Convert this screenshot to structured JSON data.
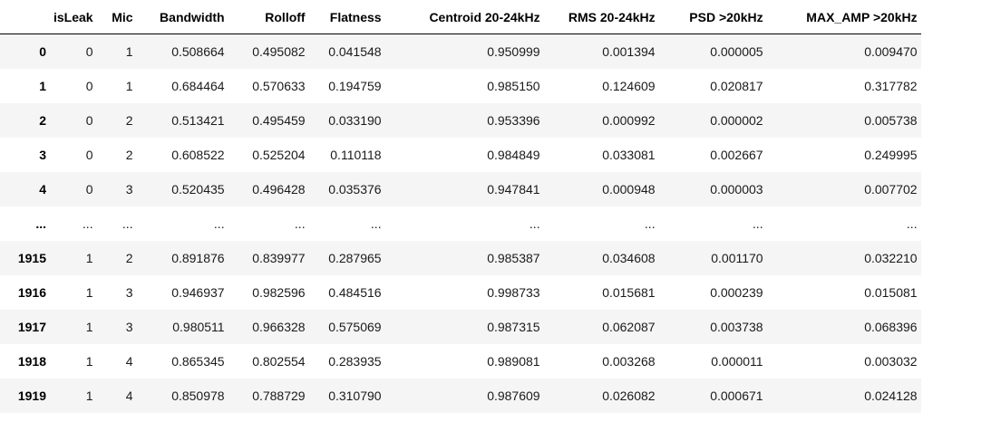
{
  "dataframe": {
    "columns": [
      "",
      "isLeak",
      "Mic",
      "Bandwidth",
      "Rolloff",
      "Flatness",
      "Centroid 20-24kHz",
      "RMS 20-24kHz",
      "PSD >20kHz",
      "MAX_AMP >20kHz"
    ],
    "rows": [
      {
        "index": "0",
        "cells": [
          "0",
          "1",
          "0.508664",
          "0.495082",
          "0.041548",
          "0.950999",
          "0.001394",
          "0.000005",
          "0.009470"
        ]
      },
      {
        "index": "1",
        "cells": [
          "0",
          "1",
          "0.684464",
          "0.570633",
          "0.194759",
          "0.985150",
          "0.124609",
          "0.020817",
          "0.317782"
        ]
      },
      {
        "index": "2",
        "cells": [
          "0",
          "2",
          "0.513421",
          "0.495459",
          "0.033190",
          "0.953396",
          "0.000992",
          "0.000002",
          "0.005738"
        ]
      },
      {
        "index": "3",
        "cells": [
          "0",
          "2",
          "0.608522",
          "0.525204",
          "0.110118",
          "0.984849",
          "0.033081",
          "0.002667",
          "0.249995"
        ]
      },
      {
        "index": "4",
        "cells": [
          "0",
          "3",
          "0.520435",
          "0.496428",
          "0.035376",
          "0.947841",
          "0.000948",
          "0.000003",
          "0.007702"
        ]
      },
      {
        "index": "...",
        "cells": [
          "...",
          "...",
          "...",
          "...",
          "...",
          "...",
          "...",
          "...",
          "..."
        ]
      },
      {
        "index": "1915",
        "cells": [
          "1",
          "2",
          "0.891876",
          "0.839977",
          "0.287965",
          "0.985387",
          "0.034608",
          "0.001170",
          "0.032210"
        ]
      },
      {
        "index": "1916",
        "cells": [
          "1",
          "3",
          "0.946937",
          "0.982596",
          "0.484516",
          "0.998733",
          "0.015681",
          "0.000239",
          "0.015081"
        ]
      },
      {
        "index": "1917",
        "cells": [
          "1",
          "3",
          "0.980511",
          "0.966328",
          "0.575069",
          "0.987315",
          "0.062087",
          "0.003738",
          "0.068396"
        ]
      },
      {
        "index": "1918",
        "cells": [
          "1",
          "4",
          "0.865345",
          "0.802554",
          "0.283935",
          "0.989081",
          "0.003268",
          "0.000011",
          "0.003032"
        ]
      },
      {
        "index": "1919",
        "cells": [
          "1",
          "4",
          "0.850978",
          "0.788729",
          "0.310790",
          "0.987609",
          "0.026082",
          "0.000671",
          "0.024128"
        ]
      }
    ]
  }
}
